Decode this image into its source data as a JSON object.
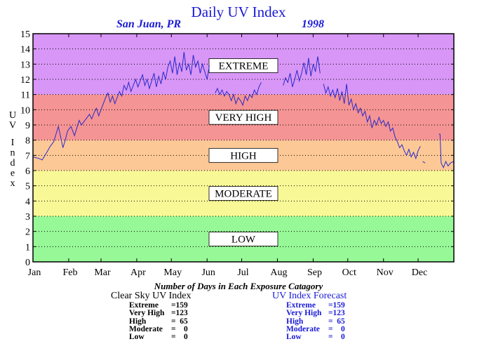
{
  "title": "Daily UV Index",
  "subtitle_location": "San Juan, PR",
  "subtitle_year": "1998",
  "ylabel": "UV Index",
  "footnote": "Number of Days in Each Exposure Catagory",
  "left_table": {
    "title": "Clear Sky UV Index",
    "rows": [
      {
        "name": "Extreme",
        "count": "=159"
      },
      {
        "name": "Very High",
        "count": "=123"
      },
      {
        "name": "High",
        "count": "=  65"
      },
      {
        "name": "Moderate",
        "count": "=    0"
      },
      {
        "name": "Low",
        "count": "=    0"
      }
    ]
  },
  "right_table": {
    "title": "UV Index Forecast",
    "rows": [
      {
        "name": "Extreme",
        "count": "=159"
      },
      {
        "name": "Very High",
        "count": "=123"
      },
      {
        "name": "High",
        "count": "=  65"
      },
      {
        "name": "Moderate",
        "count": "=    0"
      },
      {
        "name": "Low",
        "count": "=    0"
      }
    ]
  },
  "colors": {
    "text_blue": "#1a1ad6",
    "series": "#2a2acc",
    "extreme": "#d896f6",
    "very_high": "#f59494",
    "high": "#fcc896",
    "moderate": "#f8f896",
    "low": "#96f896"
  },
  "chart_data": {
    "type": "line",
    "title": "Daily UV Index",
    "ylabel": "UV Index",
    "xlabel": "",
    "ylim": [
      0,
      15
    ],
    "yticks": [
      0,
      1,
      2,
      3,
      4,
      5,
      6,
      7,
      8,
      9,
      10,
      11,
      12,
      13,
      14,
      15
    ],
    "xlim": [
      0,
      365
    ],
    "month_ticks": [
      {
        "label": "Jan",
        "day": 0
      },
      {
        "label": "Feb",
        "day": 31
      },
      {
        "label": "Mar",
        "day": 59
      },
      {
        "label": "Apr",
        "day": 90
      },
      {
        "label": "May",
        "day": 120
      },
      {
        "label": "Jun",
        "day": 151
      },
      {
        "label": "Jul",
        "day": 181
      },
      {
        "label": "Aug",
        "day": 212
      },
      {
        "label": "Sep",
        "day": 243
      },
      {
        "label": "Oct",
        "day": 273
      },
      {
        "label": "Nov",
        "day": 304
      },
      {
        "label": "Dec",
        "day": 334
      }
    ],
    "bands": [
      {
        "label": "LOW",
        "from": 0,
        "to": 3,
        "color": "#96f896"
      },
      {
        "label": "MODERATE",
        "from": 3,
        "to": 6,
        "color": "#f8f896"
      },
      {
        "label": "HIGH",
        "from": 6,
        "to": 8,
        "color": "#fcc896"
      },
      {
        "label": "VERY HIGH",
        "from": 8,
        "to": 11,
        "color": "#f59494"
      },
      {
        "label": "EXTREME",
        "from": 11,
        "to": 15,
        "color": "#d896f6"
      }
    ],
    "grid": true,
    "series": [
      {
        "segments": [
          [
            [
              0,
              6.9
            ],
            [
              5,
              6.8
            ],
            [
              8,
              6.7
            ],
            [
              12,
              7.2
            ],
            [
              15,
              7.6
            ],
            [
              18,
              7.9
            ],
            [
              20,
              8.4
            ],
            [
              22,
              8.9
            ],
            [
              24,
              8.2
            ],
            [
              26,
              7.5
            ],
            [
              28,
              8.0
            ],
            [
              30,
              8.6
            ],
            [
              33,
              8.9
            ],
            [
              36,
              8.3
            ],
            [
              38,
              8.8
            ],
            [
              40,
              9.3
            ],
            [
              42,
              9.0
            ],
            [
              44,
              9.2
            ],
            [
              47,
              9.5
            ],
            [
              49,
              9.7
            ],
            [
              51,
              9.4
            ],
            [
              53,
              9.8
            ],
            [
              55,
              10.1
            ],
            [
              57,
              9.6
            ],
            [
              59,
              10.0
            ],
            [
              61,
              10.4
            ],
            [
              63,
              10.8
            ],
            [
              65,
              11.1
            ],
            [
              67,
              10.5
            ],
            [
              69,
              10.9
            ],
            [
              71,
              10.4
            ],
            [
              73,
              10.8
            ],
            [
              75,
              11.2
            ],
            [
              77,
              10.9
            ],
            [
              79,
              11.6
            ],
            [
              81,
              11.3
            ],
            [
              83,
              11.8
            ],
            [
              85,
              11.2
            ],
            [
              87,
              11.6
            ],
            [
              89,
              12.0
            ],
            [
              91,
              11.5
            ],
            [
              93,
              11.9
            ],
            [
              95,
              12.3
            ],
            [
              97,
              11.6
            ],
            [
              99,
              12.0
            ],
            [
              101,
              11.4
            ],
            [
              103,
              11.9
            ],
            [
              105,
              12.4
            ],
            [
              107,
              11.5
            ],
            [
              109,
              12.2
            ],
            [
              111,
              11.7
            ],
            [
              113,
              12.5
            ],
            [
              115,
              12.0
            ],
            [
              117,
              12.8
            ],
            [
              119,
              13.2
            ],
            [
              121,
              12.4
            ],
            [
              123,
              13.5
            ],
            [
              125,
              12.3
            ],
            [
              127,
              13.1
            ],
            [
              129,
              12.5
            ],
            [
              131,
              13.8
            ],
            [
              133,
              12.6
            ],
            [
              135,
              13.0
            ],
            [
              137,
              12.3
            ],
            [
              139,
              13.6
            ],
            [
              141,
              12.8
            ],
            [
              143,
              13.2
            ],
            [
              145,
              12.4
            ],
            [
              147,
              13.0
            ],
            [
              149,
              12.5
            ],
            [
              151,
              12.0
            ],
            [
              153,
              12.9
            ]
          ],
          [
            [
              158,
              11.1
            ],
            [
              160,
              11.4
            ],
            [
              162,
              11.0
            ],
            [
              164,
              11.3
            ],
            [
              166,
              10.9
            ],
            [
              168,
              11.2
            ],
            [
              170,
              11.0
            ],
            [
              172,
              10.6
            ],
            [
              174,
              11.0
            ],
            [
              176,
              10.4
            ],
            [
              178,
              10.8
            ],
            [
              180,
              10.6
            ],
            [
              182,
              10.3
            ],
            [
              184,
              10.9
            ],
            [
              186,
              10.6
            ],
            [
              188,
              11.0
            ],
            [
              190,
              10.8
            ],
            [
              192,
              11.3
            ],
            [
              194,
              11.0
            ],
            [
              196,
              11.5
            ],
            [
              198,
              11.8
            ]
          ],
          [
            [
              217,
              11.6
            ],
            [
              219,
              12.1
            ],
            [
              221,
              11.8
            ],
            [
              223,
              12.4
            ],
            [
              225,
              11.5
            ],
            [
              227,
              12.0
            ],
            [
              229,
              12.6
            ],
            [
              231,
              11.9
            ],
            [
              233,
              12.4
            ],
            [
              235,
              13.1
            ],
            [
              237,
              12.3
            ],
            [
              239,
              13.4
            ],
            [
              241,
              12.2
            ],
            [
              243,
              13.0
            ],
            [
              245,
              12.5
            ],
            [
              247,
              13.5
            ],
            [
              249,
              12.4
            ]
          ],
          [
            [
              252,
              11.7
            ],
            [
              254,
              11.1
            ],
            [
              256,
              11.5
            ],
            [
              258,
              10.9
            ],
            [
              260,
              11.3
            ],
            [
              262,
              10.8
            ],
            [
              264,
              11.4
            ],
            [
              266,
              10.6
            ],
            [
              268,
              11.2
            ],
            [
              270,
              10.4
            ],
            [
              272,
              11.7
            ],
            [
              274,
              10.3
            ],
            [
              276,
              10.7
            ],
            [
              278,
              10.0
            ],
            [
              280,
              10.4
            ],
            [
              282,
              9.8
            ],
            [
              284,
              10.1
            ],
            [
              286,
              9.6
            ],
            [
              288,
              9.9
            ],
            [
              290,
              9.2
            ],
            [
              292,
              9.6
            ],
            [
              294,
              8.8
            ],
            [
              296,
              9.3
            ],
            [
              298,
              9.0
            ],
            [
              300,
              9.5
            ],
            [
              302,
              9.1
            ],
            [
              304,
              9.3
            ],
            [
              306,
              8.9
            ],
            [
              308,
              9.2
            ],
            [
              310,
              8.6
            ],
            [
              312,
              8.8
            ],
            [
              314,
              8.2
            ],
            [
              316,
              7.9
            ],
            [
              318,
              7.5
            ],
            [
              320,
              7.7
            ],
            [
              322,
              7.3
            ],
            [
              324,
              7.0
            ],
            [
              326,
              7.4
            ],
            [
              328,
              6.9
            ],
            [
              330,
              7.2
            ],
            [
              332,
              6.8
            ],
            [
              334,
              7.3
            ],
            [
              336,
              7.6
            ]
          ],
          [
            [
              338,
              6.6
            ],
            [
              340,
              6.5
            ]
          ],
          [
            [
              352,
              8.4
            ],
            [
              353,
              8.4
            ],
            [
              354,
              6.5
            ],
            [
              356,
              6.2
            ],
            [
              358,
              6.6
            ],
            [
              360,
              6.3
            ],
            [
              362,
              6.5
            ],
            [
              365,
              6.6
            ]
          ]
        ]
      }
    ]
  }
}
